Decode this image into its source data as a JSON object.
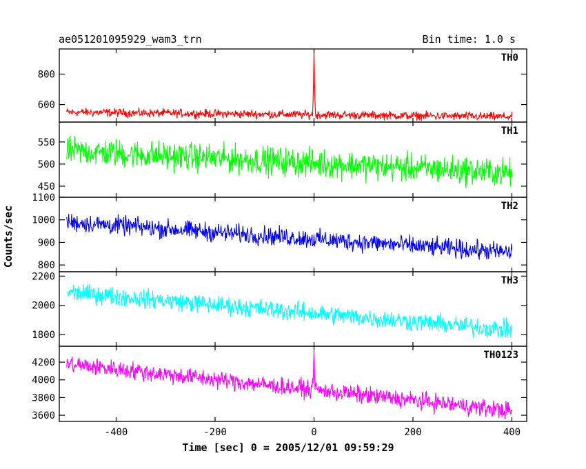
{
  "header": {
    "left": "ae051201095929_wam3_trn",
    "right": "Bin time: 1.0 s"
  },
  "chart_data": {
    "type": "line",
    "title": "ae051201095929_wam3_trn",
    "subtitle": "Bin time: 1.0 s",
    "xlabel": "Time [sec] 0 = 2005/12/01 09:59:29",
    "ylabel": "Counts/sec",
    "xlim": [
      -515,
      430
    ],
    "x_ticks": [
      -400,
      -200,
      0,
      200,
      400
    ],
    "bin_time_s": 1.0,
    "panels": [
      {
        "name": "TH0",
        "color": "#ff0000",
        "ylim": [
          485,
          965
        ],
        "y_ticks": [
          600,
          800
        ],
        "trend": {
          "x": [
            -500,
            400
          ],
          "y": [
            550,
            520
          ]
        },
        "noise_amplitude": 30,
        "peak": {
          "x": 0,
          "y": 960
        }
      },
      {
        "name": "TH1",
        "color": "#00ff00",
        "ylim": [
          425,
          595
        ],
        "y_ticks": [
          450,
          500,
          550
        ],
        "trend": {
          "x": [
            -500,
            400
          ],
          "y": [
            530,
            480
          ]
        },
        "noise_amplitude": 35
      },
      {
        "name": "TH2",
        "color": "#0000ff",
        "ylim": [
          770,
          1100
        ],
        "y_ticks": [
          800,
          900,
          1000,
          1100
        ],
        "trend": {
          "x": [
            -500,
            400
          ],
          "y": [
            990,
            855
          ]
        },
        "noise_amplitude": 45
      },
      {
        "name": "TH3",
        "color": "#00ffff",
        "ylim": [
          1720,
          2230
        ],
        "y_ticks": [
          1800,
          2000,
          2200
        ],
        "trend": {
          "x": [
            -500,
            400
          ],
          "y": [
            2090,
            1830
          ]
        },
        "noise_amplitude": 70
      },
      {
        "name": "TH0123",
        "color": "#ff00ff",
        "ylim": [
          3530,
          4380
        ],
        "y_ticks": [
          3600,
          3800,
          4000,
          4200
        ],
        "trend": {
          "x": [
            -500,
            400
          ],
          "y": [
            4180,
            3650
          ]
        },
        "noise_amplitude": 110,
        "peak": {
          "x": 0,
          "y": 4340
        }
      }
    ]
  }
}
